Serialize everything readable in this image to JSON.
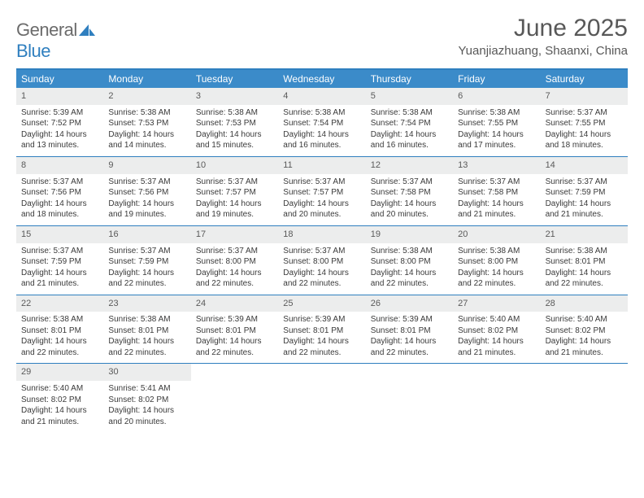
{
  "brand": {
    "part1": "General",
    "part2": "Blue"
  },
  "title": "June 2025",
  "subtitle": "Yuanjiazhuang, Shaanxi, China",
  "colors": {
    "header_bg": "#3b8bc9",
    "header_border": "#2f7fbf",
    "daynum_bg": "#eceded",
    "text": "#3a3a3a",
    "title_text": "#585858"
  },
  "typography": {
    "title_fontsize": 30,
    "subtitle_fontsize": 15,
    "header_fontsize": 12,
    "daynum_fontsize": 11,
    "body_fontsize": 10
  },
  "weekdays": [
    "Sunday",
    "Monday",
    "Tuesday",
    "Wednesday",
    "Thursday",
    "Friday",
    "Saturday"
  ],
  "weeks": [
    [
      {
        "n": "1",
        "sr": "Sunrise: 5:39 AM",
        "ss": "Sunset: 7:52 PM",
        "dl": "Daylight: 14 hours and 13 minutes."
      },
      {
        "n": "2",
        "sr": "Sunrise: 5:38 AM",
        "ss": "Sunset: 7:53 PM",
        "dl": "Daylight: 14 hours and 14 minutes."
      },
      {
        "n": "3",
        "sr": "Sunrise: 5:38 AM",
        "ss": "Sunset: 7:53 PM",
        "dl": "Daylight: 14 hours and 15 minutes."
      },
      {
        "n": "4",
        "sr": "Sunrise: 5:38 AM",
        "ss": "Sunset: 7:54 PM",
        "dl": "Daylight: 14 hours and 16 minutes."
      },
      {
        "n": "5",
        "sr": "Sunrise: 5:38 AM",
        "ss": "Sunset: 7:54 PM",
        "dl": "Daylight: 14 hours and 16 minutes."
      },
      {
        "n": "6",
        "sr": "Sunrise: 5:38 AM",
        "ss": "Sunset: 7:55 PM",
        "dl": "Daylight: 14 hours and 17 minutes."
      },
      {
        "n": "7",
        "sr": "Sunrise: 5:37 AM",
        "ss": "Sunset: 7:55 PM",
        "dl": "Daylight: 14 hours and 18 minutes."
      }
    ],
    [
      {
        "n": "8",
        "sr": "Sunrise: 5:37 AM",
        "ss": "Sunset: 7:56 PM",
        "dl": "Daylight: 14 hours and 18 minutes."
      },
      {
        "n": "9",
        "sr": "Sunrise: 5:37 AM",
        "ss": "Sunset: 7:56 PM",
        "dl": "Daylight: 14 hours and 19 minutes."
      },
      {
        "n": "10",
        "sr": "Sunrise: 5:37 AM",
        "ss": "Sunset: 7:57 PM",
        "dl": "Daylight: 14 hours and 19 minutes."
      },
      {
        "n": "11",
        "sr": "Sunrise: 5:37 AM",
        "ss": "Sunset: 7:57 PM",
        "dl": "Daylight: 14 hours and 20 minutes."
      },
      {
        "n": "12",
        "sr": "Sunrise: 5:37 AM",
        "ss": "Sunset: 7:58 PM",
        "dl": "Daylight: 14 hours and 20 minutes."
      },
      {
        "n": "13",
        "sr": "Sunrise: 5:37 AM",
        "ss": "Sunset: 7:58 PM",
        "dl": "Daylight: 14 hours and 21 minutes."
      },
      {
        "n": "14",
        "sr": "Sunrise: 5:37 AM",
        "ss": "Sunset: 7:59 PM",
        "dl": "Daylight: 14 hours and 21 minutes."
      }
    ],
    [
      {
        "n": "15",
        "sr": "Sunrise: 5:37 AM",
        "ss": "Sunset: 7:59 PM",
        "dl": "Daylight: 14 hours and 21 minutes."
      },
      {
        "n": "16",
        "sr": "Sunrise: 5:37 AM",
        "ss": "Sunset: 7:59 PM",
        "dl": "Daylight: 14 hours and 22 minutes."
      },
      {
        "n": "17",
        "sr": "Sunrise: 5:37 AM",
        "ss": "Sunset: 8:00 PM",
        "dl": "Daylight: 14 hours and 22 minutes."
      },
      {
        "n": "18",
        "sr": "Sunrise: 5:37 AM",
        "ss": "Sunset: 8:00 PM",
        "dl": "Daylight: 14 hours and 22 minutes."
      },
      {
        "n": "19",
        "sr": "Sunrise: 5:38 AM",
        "ss": "Sunset: 8:00 PM",
        "dl": "Daylight: 14 hours and 22 minutes."
      },
      {
        "n": "20",
        "sr": "Sunrise: 5:38 AM",
        "ss": "Sunset: 8:00 PM",
        "dl": "Daylight: 14 hours and 22 minutes."
      },
      {
        "n": "21",
        "sr": "Sunrise: 5:38 AM",
        "ss": "Sunset: 8:01 PM",
        "dl": "Daylight: 14 hours and 22 minutes."
      }
    ],
    [
      {
        "n": "22",
        "sr": "Sunrise: 5:38 AM",
        "ss": "Sunset: 8:01 PM",
        "dl": "Daylight: 14 hours and 22 minutes."
      },
      {
        "n": "23",
        "sr": "Sunrise: 5:38 AM",
        "ss": "Sunset: 8:01 PM",
        "dl": "Daylight: 14 hours and 22 minutes."
      },
      {
        "n": "24",
        "sr": "Sunrise: 5:39 AM",
        "ss": "Sunset: 8:01 PM",
        "dl": "Daylight: 14 hours and 22 minutes."
      },
      {
        "n": "25",
        "sr": "Sunrise: 5:39 AM",
        "ss": "Sunset: 8:01 PM",
        "dl": "Daylight: 14 hours and 22 minutes."
      },
      {
        "n": "26",
        "sr": "Sunrise: 5:39 AM",
        "ss": "Sunset: 8:01 PM",
        "dl": "Daylight: 14 hours and 22 minutes."
      },
      {
        "n": "27",
        "sr": "Sunrise: 5:40 AM",
        "ss": "Sunset: 8:02 PM",
        "dl": "Daylight: 14 hours and 21 minutes."
      },
      {
        "n": "28",
        "sr": "Sunrise: 5:40 AM",
        "ss": "Sunset: 8:02 PM",
        "dl": "Daylight: 14 hours and 21 minutes."
      }
    ],
    [
      {
        "n": "29",
        "sr": "Sunrise: 5:40 AM",
        "ss": "Sunset: 8:02 PM",
        "dl": "Daylight: 14 hours and 21 minutes."
      },
      {
        "n": "30",
        "sr": "Sunrise: 5:41 AM",
        "ss": "Sunset: 8:02 PM",
        "dl": "Daylight: 14 hours and 20 minutes."
      },
      {
        "n": "",
        "sr": "",
        "ss": "",
        "dl": ""
      },
      {
        "n": "",
        "sr": "",
        "ss": "",
        "dl": ""
      },
      {
        "n": "",
        "sr": "",
        "ss": "",
        "dl": ""
      },
      {
        "n": "",
        "sr": "",
        "ss": "",
        "dl": ""
      },
      {
        "n": "",
        "sr": "",
        "ss": "",
        "dl": ""
      }
    ]
  ]
}
